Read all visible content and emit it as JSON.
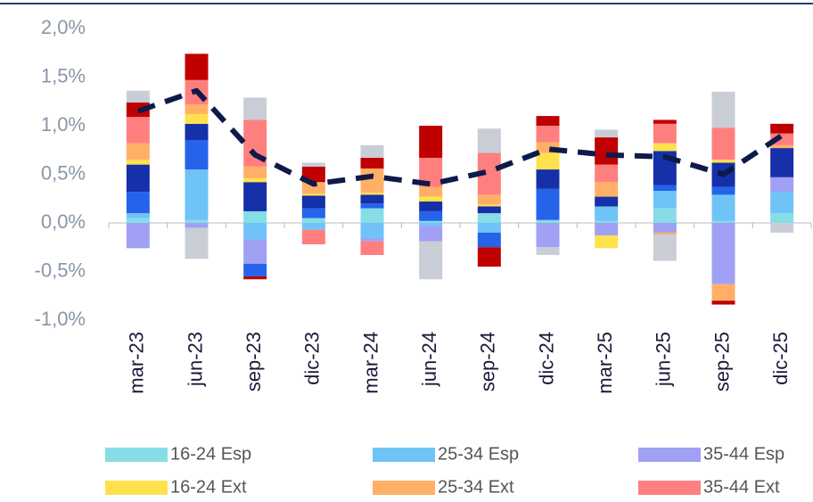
{
  "chart_data": {
    "type": "bar",
    "stacked": true,
    "categories": [
      "mar-23",
      "jun-23",
      "sep-23",
      "dic-23",
      "mar-24",
      "jun-24",
      "sep-24",
      "dic-24",
      "mar-25",
      "jun-25",
      "sep-25",
      "dic-25"
    ],
    "ylim": [
      -1,
      2
    ],
    "yticks": [
      {
        "value": -1,
        "label": "-1,0%"
      },
      {
        "value": -0.5,
        "label": "-0,5%"
      },
      {
        "value": 0,
        "label": "0,0%"
      },
      {
        "value": 0.5,
        "label": "0,5%"
      },
      {
        "value": 1,
        "label": "1,0%"
      },
      {
        "value": 1.5,
        "label": "1,5%"
      },
      {
        "value": 2,
        "label": "2,0%"
      }
    ],
    "grid": false,
    "series": [
      {
        "name": "16-24 Esp",
        "color": "#86dde6",
        "values": [
          0.05,
          0.03,
          0.12,
          0.05,
          0.15,
          0.02,
          0.1,
          0.03,
          0.02,
          0.15,
          0.02,
          0.1
        ]
      },
      {
        "name": "25-34 Esp",
        "color": "#6fc3f7",
        "values": [
          0.05,
          0.52,
          -0.17,
          -0.07,
          -0.16,
          -0.03,
          -0.1,
          0,
          0.15,
          0.18,
          0.27,
          0.22
        ]
      },
      {
        "name": "35-44 Esp",
        "color": "#a0a0f5",
        "values": [
          -0.26,
          -0.05,
          -0.25,
          0,
          -0.03,
          -0.16,
          0,
          -0.25,
          -0.13,
          -0.1,
          -0.63,
          0.15
        ]
      },
      {
        "color": "#2563eb",
        "values": [
          0.22,
          0.3,
          -0.13,
          0.1,
          0.05,
          0.1,
          -0.15,
          0.32,
          0,
          0.06,
          0.08,
          0
        ]
      },
      {
        "color": "#1530a8",
        "values": [
          0.28,
          0.17,
          0.3,
          0.13,
          0.09,
          0.1,
          0.07,
          0.2,
          0.1,
          0.35,
          0.25,
          0.3
        ]
      },
      {
        "name": "16-24 Ext",
        "color": "#ffe14d",
        "values": [
          0.05,
          0.1,
          0.04,
          0.02,
          0.02,
          0.05,
          0.02,
          0.17,
          -0.13,
          0.08,
          0.03,
          0
        ]
      },
      {
        "name": "25-34 Ext",
        "color": "#ffb066",
        "values": [
          0.17,
          0.1,
          0.12,
          0.12,
          0.25,
          0.1,
          0.1,
          0.11,
          0.15,
          -0.02,
          -0.17,
          0.03
        ]
      },
      {
        "name": "35-44 Ext",
        "color": "#ff7f7f",
        "values": [
          0.27,
          0.25,
          0.48,
          -0.15,
          -0.14,
          0.3,
          0.43,
          0.17,
          0.18,
          0.2,
          0.33,
          0.12
        ]
      },
      {
        "color": "#c00000",
        "values": [
          0.15,
          0.27,
          -0.03,
          0.16,
          0.11,
          0.33,
          -0.2,
          0.1,
          0.28,
          0.04,
          -0.04,
          0.1
        ]
      },
      {
        "color": "#c9ced6",
        "values": [
          0.12,
          -0.32,
          0.23,
          0.04,
          0.13,
          -0.39,
          0.25,
          -0.08,
          0.08,
          -0.27,
          0.37,
          -0.1
        ]
      },
      {
        "type": "line",
        "color": "#0d1a4a",
        "dashed": true,
        "values": [
          1.15,
          1.36,
          0.7,
          0.4,
          0.48,
          0.4,
          0.53,
          0.76,
          0.7,
          0.68,
          0.5,
          0.9
        ]
      }
    ]
  }
}
